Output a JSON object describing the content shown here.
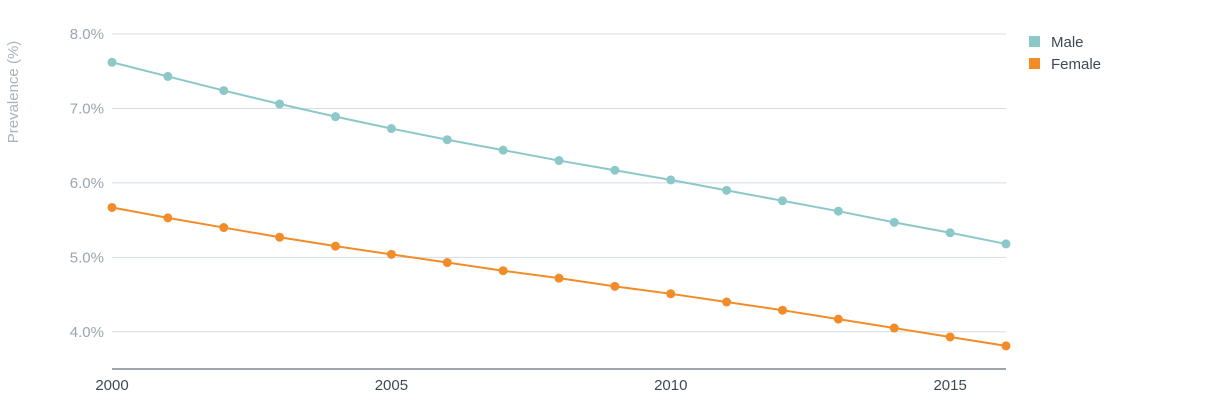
{
  "chart_data": {
    "type": "line",
    "title": "",
    "xlabel": "",
    "ylabel": "Prevalence (%)",
    "x": [
      2000,
      2001,
      2002,
      2003,
      2004,
      2005,
      2006,
      2007,
      2008,
      2009,
      2010,
      2011,
      2012,
      2013,
      2014,
      2015,
      2016
    ],
    "x_ticks": [
      2000,
      2005,
      2010,
      2015
    ],
    "x_tick_labels": [
      "2000",
      "2005",
      "2010",
      "2015"
    ],
    "y_ticks": [
      4.0,
      5.0,
      6.0,
      7.0,
      8.0
    ],
    "y_tick_labels": [
      "4.0%",
      "5.0%",
      "6.0%",
      "7.0%",
      "8.0%"
    ],
    "xlim": [
      2000,
      2016
    ],
    "ylim": [
      3.5,
      8.0
    ],
    "grid": "horizontal",
    "legend_position": "top-right",
    "series": [
      {
        "name": "Male",
        "color": "#8cc8c8",
        "values": [
          7.62,
          7.43,
          7.24,
          7.06,
          6.89,
          6.73,
          6.58,
          6.44,
          6.3,
          6.17,
          6.04,
          5.9,
          5.76,
          5.62,
          5.47,
          5.33,
          5.18
        ]
      },
      {
        "name": "Female",
        "color": "#f28c28",
        "values": [
          5.67,
          5.53,
          5.4,
          5.27,
          5.15,
          5.04,
          4.93,
          4.82,
          4.72,
          4.61,
          4.51,
          4.4,
          4.29,
          4.17,
          4.05,
          3.93,
          3.81
        ]
      }
    ]
  }
}
